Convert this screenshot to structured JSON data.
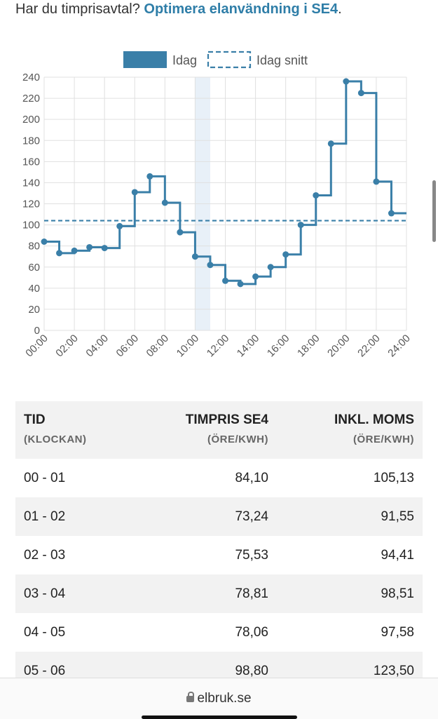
{
  "promo": {
    "text": "Har du timprisavtal? ",
    "link": "Optimera elanvändning i SE4",
    "suffix": "."
  },
  "legend": {
    "today": "Idag",
    "avg": "Idag snitt"
  },
  "colors": {
    "line": "#3a7fa8",
    "grid": "#e0e0e0",
    "highlight": "#e8f0f8"
  },
  "chart_data": {
    "type": "line",
    "step": true,
    "x_ticks": [
      "00:00",
      "02:00",
      "04:00",
      "06:00",
      "08:00",
      "10:00",
      "12:00",
      "14:00",
      "16:00",
      "18:00",
      "20:00",
      "22:00",
      "24:00"
    ],
    "y_ticks": [
      "0",
      "20",
      "40",
      "60",
      "80",
      "100",
      "120",
      "140",
      "160",
      "180",
      "200",
      "220",
      "240"
    ],
    "ylim": [
      0,
      240
    ],
    "xlim": [
      0,
      24
    ],
    "series": [
      {
        "name": "Idag",
        "values": [
          84.1,
          73.24,
          75.53,
          78.81,
          78.06,
          98.8,
          131,
          146,
          121,
          93,
          70,
          62,
          47,
          44,
          51,
          60,
          72,
          100,
          128,
          177,
          236,
          225,
          141,
          111
        ]
      },
      {
        "name": "Idag snitt",
        "values": [
          104
        ]
      }
    ],
    "highlight_hour": 10
  },
  "table": {
    "headers": [
      {
        "title": "TID",
        "sub": "(KLOCKAN)"
      },
      {
        "title": "TIMPRIS SE4",
        "sub": "(ÖRE/KWH)"
      },
      {
        "title": "INKL. MOMS",
        "sub": "(ÖRE/KWH)"
      }
    ],
    "rows": [
      [
        "00 - 01",
        "84,10",
        "105,13"
      ],
      [
        "01 - 02",
        "73,24",
        "91,55"
      ],
      [
        "02 - 03",
        "75,53",
        "94,41"
      ],
      [
        "03 - 04",
        "78,81",
        "98,51"
      ],
      [
        "04 - 05",
        "78,06",
        "97,58"
      ],
      [
        "05 - 06",
        "98,80",
        "123,50"
      ]
    ]
  },
  "browser": {
    "url": "elbruk.se"
  }
}
